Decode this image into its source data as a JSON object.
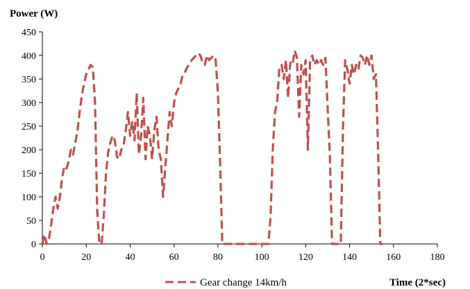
{
  "chart_data": {
    "type": "line",
    "ylabel": "Power (W)",
    "xlabel": "Time (2*sec)",
    "xlim": [
      0,
      180
    ],
    "ylim": [
      0,
      450
    ],
    "x_ticks": [
      0,
      20,
      40,
      60,
      80,
      100,
      120,
      140,
      160,
      180
    ],
    "y_ticks": [
      0,
      50,
      100,
      150,
      200,
      250,
      300,
      350,
      400,
      450
    ],
    "grid": false,
    "legend_position": "bottom",
    "series": [
      {
        "name": "Gear change 14km/h",
        "color": "#c0504d",
        "line_style": "dashed",
        "x": [
          0,
          1,
          2,
          3,
          4,
          5,
          6,
          7,
          8,
          9,
          10,
          11,
          12,
          13,
          14,
          15,
          16,
          17,
          18,
          19,
          20,
          21,
          22,
          23,
          24,
          25,
          26,
          27,
          28,
          29,
          30,
          31,
          32,
          33,
          34,
          35,
          36,
          37,
          38,
          39,
          40,
          41,
          42,
          43,
          44,
          45,
          46,
          47,
          48,
          49,
          50,
          51,
          52,
          53,
          54,
          55,
          56,
          57,
          58,
          59,
          60,
          61,
          62,
          63,
          64,
          65,
          66,
          67,
          68,
          69,
          70,
          71,
          72,
          73,
          74,
          75,
          76,
          77,
          78,
          79,
          80,
          81,
          82,
          83,
          84,
          85,
          86,
          87,
          88,
          89,
          90,
          91,
          92,
          93,
          94,
          95,
          96,
          97,
          98,
          99,
          100,
          101,
          102,
          103,
          104,
          105,
          106,
          107,
          108,
          109,
          110,
          111,
          112,
          113,
          114,
          115,
          116,
          117,
          118,
          119,
          120,
          121,
          122,
          123,
          124,
          125,
          126,
          127,
          128,
          129,
          130,
          131,
          132,
          133,
          134,
          135,
          136,
          137,
          138,
          139,
          140,
          141,
          142,
          143,
          144,
          145,
          146,
          147,
          148,
          149,
          150,
          151,
          152,
          153,
          154,
          155
        ],
        "values": [
          0,
          20,
          0,
          10,
          40,
          75,
          100,
          75,
          100,
          140,
          165,
          160,
          175,
          200,
          190,
          215,
          240,
          280,
          315,
          340,
          360,
          370,
          380,
          375,
          300,
          70,
          0,
          0,
          60,
          150,
          195,
          215,
          230,
          220,
          185,
          180,
          200,
          210,
          240,
          280,
          230,
          260,
          220,
          320,
          190,
          230,
          310,
          180,
          250,
          230,
          180,
          240,
          270,
          200,
          180,
          100,
          160,
          220,
          280,
          250,
          300,
          320,
          330,
          340,
          360,
          365,
          375,
          380,
          390,
          395,
          400,
          405,
          400,
          385,
          380,
          400,
          390,
          395,
          400,
          390,
          320,
          170,
          0,
          0,
          0,
          0,
          0,
          0,
          0,
          0,
          0,
          0,
          0,
          0,
          0,
          0,
          0,
          0,
          0,
          0,
          0,
          0,
          0,
          0,
          60,
          200,
          280,
          300,
          375,
          380,
          350,
          390,
          310,
          385,
          380,
          410,
          395,
          270,
          380,
          360,
          390,
          200,
          390,
          400,
          380,
          390,
          380,
          390,
          380,
          395,
          290,
          190,
          0,
          0,
          0,
          0,
          0,
          250,
          390,
          370,
          340,
          380,
          360,
          380,
          370,
          400,
          395,
          380,
          400,
          380,
          400,
          350,
          360,
          200,
          0,
          0
        ]
      }
    ]
  }
}
